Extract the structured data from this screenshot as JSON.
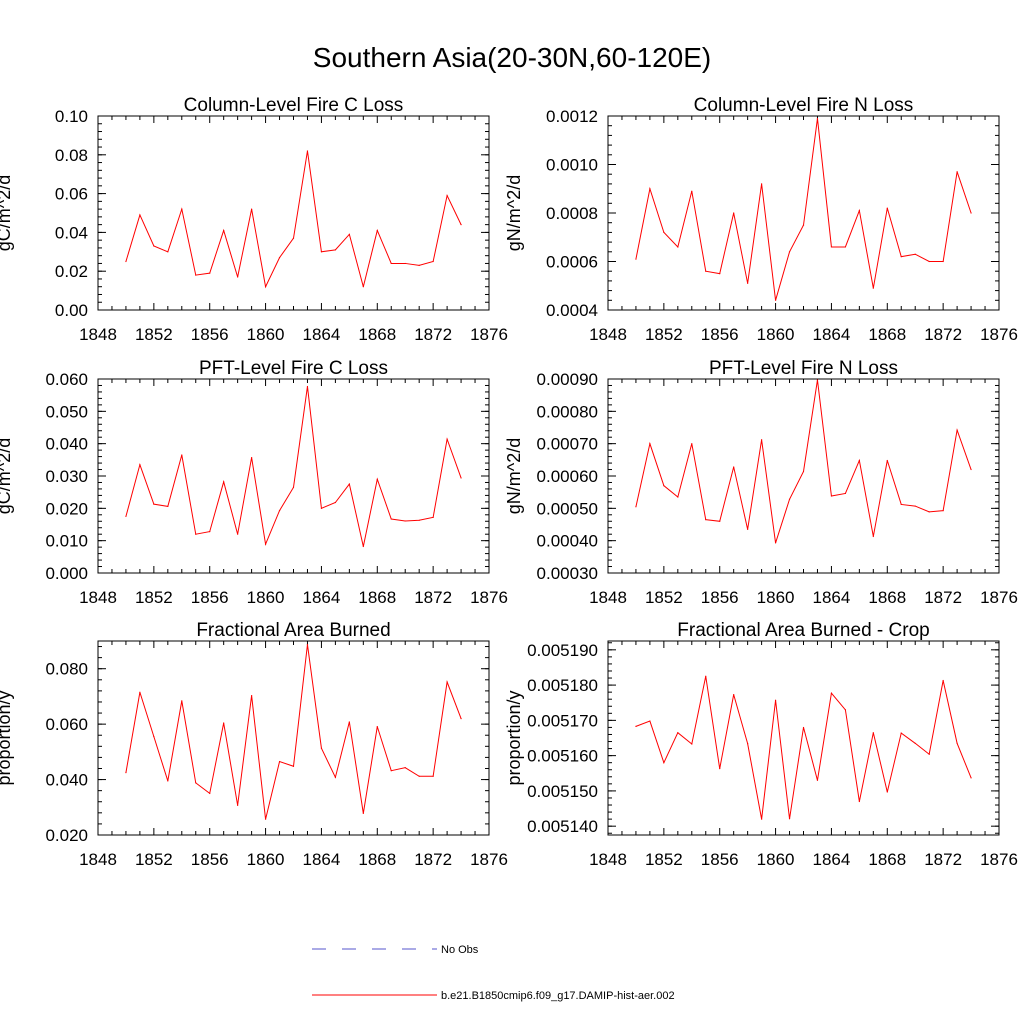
{
  "figure": {
    "title": "Southern Asia(20-30N,60-120E)"
  },
  "chart_data": [
    {
      "type": "line",
      "title": "Column-Level Fire C Loss",
      "xlabel": "",
      "ylabel": "gC/m^2/d",
      "xlim": [
        1848,
        1876
      ],
      "ylim": [
        0.0,
        0.1
      ],
      "x_ticks": [
        1848,
        1852,
        1856,
        1860,
        1864,
        1868,
        1872,
        1876
      ],
      "y_ticks": [
        0.0,
        0.02,
        0.04,
        0.06,
        0.08,
        0.1
      ],
      "y_tick_labels": [
        "0.00",
        "0.02",
        "0.04",
        "0.06",
        "0.08",
        "0.10"
      ],
      "x": [
        1850,
        1851,
        1852,
        1853,
        1854,
        1855,
        1856,
        1857,
        1858,
        1859,
        1860,
        1861,
        1862,
        1863,
        1864,
        1865,
        1866,
        1867,
        1868,
        1869,
        1870,
        1871,
        1872,
        1873,
        1874
      ],
      "series": [
        {
          "name": "b.e21.B1850cmip6.f09_g17.DAMIP-hist-aer.002",
          "color": "#ff0000",
          "values": [
            0.025,
            0.049,
            0.033,
            0.03,
            0.052,
            0.018,
            0.019,
            0.041,
            0.017,
            0.052,
            0.012,
            0.027,
            0.037,
            0.082,
            0.03,
            0.031,
            0.039,
            0.012,
            0.041,
            0.024,
            0.024,
            0.023,
            0.025,
            0.059,
            0.044
          ]
        }
      ]
    },
    {
      "type": "line",
      "title": "Column-Level Fire N Loss",
      "xlabel": "",
      "ylabel": "gN/m^2/d",
      "xlim": [
        1848,
        1876
      ],
      "ylim": [
        0.0004,
        0.0012
      ],
      "x_ticks": [
        1848,
        1852,
        1856,
        1860,
        1864,
        1868,
        1872,
        1876
      ],
      "y_ticks": [
        0.0004,
        0.0006,
        0.0008,
        0.001,
        0.0012
      ],
      "y_tick_labels": [
        "0.0004",
        "0.0006",
        "0.0008",
        "0.0010",
        "0.0012"
      ],
      "x": [
        1850,
        1851,
        1852,
        1853,
        1854,
        1855,
        1856,
        1857,
        1858,
        1859,
        1860,
        1861,
        1862,
        1863,
        1864,
        1865,
        1866,
        1867,
        1868,
        1869,
        1870,
        1871,
        1872,
        1873,
        1874
      ],
      "series": [
        {
          "name": "b.e21.B1850cmip6.f09_g17.DAMIP-hist-aer.002",
          "color": "#ff0000",
          "values": [
            0.00061,
            0.0009,
            0.00072,
            0.00066,
            0.00089,
            0.00056,
            0.00055,
            0.0008,
            0.00051,
            0.00092,
            0.00044,
            0.00064,
            0.00075,
            0.00119,
            0.00066,
            0.00066,
            0.00081,
            0.00049,
            0.00082,
            0.00062,
            0.00063,
            0.0006,
            0.0006,
            0.00097,
            0.0008
          ]
        }
      ]
    },
    {
      "type": "line",
      "title": "PFT-Level Fire C Loss",
      "xlabel": "",
      "ylabel": "gC/m^2/d",
      "xlim": [
        1848,
        1876
      ],
      "ylim": [
        0.0,
        0.06
      ],
      "x_ticks": [
        1848,
        1852,
        1856,
        1860,
        1864,
        1868,
        1872,
        1876
      ],
      "y_ticks": [
        0.0,
        0.01,
        0.02,
        0.03,
        0.04,
        0.05,
        0.06
      ],
      "y_tick_labels": [
        "0.000",
        "0.010",
        "0.020",
        "0.030",
        "0.040",
        "0.050",
        "0.060"
      ],
      "x": [
        1850,
        1851,
        1852,
        1853,
        1854,
        1855,
        1856,
        1857,
        1858,
        1859,
        1860,
        1861,
        1862,
        1863,
        1864,
        1865,
        1866,
        1867,
        1868,
        1869,
        1870,
        1871,
        1872,
        1873,
        1874
      ],
      "series": [
        {
          "name": "b.e21.B1850cmip6.f09_g17.DAMIP-hist-aer.002",
          "color": "#ff0000",
          "values": [
            0.0175,
            0.0335,
            0.0213,
            0.0206,
            0.0365,
            0.012,
            0.0128,
            0.0282,
            0.012,
            0.0357,
            0.0089,
            0.0193,
            0.0265,
            0.0577,
            0.02,
            0.0218,
            0.0275,
            0.0082,
            0.029,
            0.0167,
            0.0161,
            0.0163,
            0.0172,
            0.0414,
            0.0294
          ]
        }
      ]
    },
    {
      "type": "line",
      "title": "PFT-Level Fire N Loss",
      "xlabel": "",
      "ylabel": "gN/m^2/d",
      "xlim": [
        1848,
        1876
      ],
      "ylim": [
        0.0003,
        0.0009
      ],
      "x_ticks": [
        1848,
        1852,
        1856,
        1860,
        1864,
        1868,
        1872,
        1876
      ],
      "y_ticks": [
        0.0003,
        0.0004,
        0.0005,
        0.0006,
        0.0007,
        0.0008,
        0.0009
      ],
      "y_tick_labels": [
        "0.00030",
        "0.00040",
        "0.00050",
        "0.00060",
        "0.00070",
        "0.00080",
        "0.00090"
      ],
      "x": [
        1850,
        1851,
        1852,
        1853,
        1854,
        1855,
        1856,
        1857,
        1858,
        1859,
        1860,
        1861,
        1862,
        1863,
        1864,
        1865,
        1866,
        1867,
        1868,
        1869,
        1870,
        1871,
        1872,
        1873,
        1874
      ],
      "series": [
        {
          "name": "b.e21.B1850cmip6.f09_g17.DAMIP-hist-aer.002",
          "color": "#ff0000",
          "values": [
            0.000505,
            0.0007,
            0.00057,
            0.000535,
            0.0007,
            0.000465,
            0.00046,
            0.000628,
            0.000435,
            0.000712,
            0.000393,
            0.000528,
            0.000614,
            0.000897,
            0.000538,
            0.000546,
            0.000648,
            0.000413,
            0.000648,
            0.000512,
            0.000507,
            0.000489,
            0.000493,
            0.000742,
            0.00062
          ]
        }
      ]
    },
    {
      "type": "line",
      "title": "Fractional Area Burned",
      "xlabel": "",
      "ylabel": "proportion/y",
      "xlim": [
        1848,
        1876
      ],
      "ylim": [
        0.02,
        0.09
      ],
      "x_ticks": [
        1848,
        1852,
        1856,
        1860,
        1864,
        1868,
        1872,
        1876
      ],
      "y_ticks": [
        0.02,
        0.04,
        0.06,
        0.08
      ],
      "y_tick_labels": [
        "0.020",
        "0.040",
        "0.060",
        "0.080"
      ],
      "x": [
        1850,
        1851,
        1852,
        1853,
        1854,
        1855,
        1856,
        1857,
        1858,
        1859,
        1860,
        1861,
        1862,
        1863,
        1864,
        1865,
        1866,
        1867,
        1868,
        1869,
        1870,
        1871,
        1872,
        1873,
        1874
      ],
      "series": [
        {
          "name": "b.e21.B1850cmip6.f09_g17.DAMIP-hist-aer.002",
          "color": "#ff0000",
          "values": [
            0.0425,
            0.0715,
            0.0555,
            0.0395,
            0.0684,
            0.0388,
            0.035,
            0.0604,
            0.0307,
            0.0703,
            0.0257,
            0.0465,
            0.0448,
            0.0887,
            0.0513,
            0.0408,
            0.0608,
            0.0278,
            0.0591,
            0.0432,
            0.0443,
            0.0412,
            0.0412,
            0.0752,
            0.062
          ]
        }
      ]
    },
    {
      "type": "line",
      "title": "Fractional Area Burned - Crop",
      "xlabel": "",
      "ylabel": "proportion/y",
      "xlim": [
        1848,
        1876
      ],
      "ylim": [
        0.0051375,
        0.0051925
      ],
      "x_ticks": [
        1848,
        1852,
        1856,
        1860,
        1864,
        1868,
        1872,
        1876
      ],
      "y_ticks": [
        0.00514,
        0.00515,
        0.00516,
        0.00517,
        0.00518,
        0.00519
      ],
      "y_tick_labels": [
        "0.005140",
        "0.005150",
        "0.005160",
        "0.005170",
        "0.005180",
        "0.005190"
      ],
      "x": [
        1850,
        1851,
        1852,
        1853,
        1854,
        1855,
        1856,
        1857,
        1858,
        1859,
        1860,
        1861,
        1862,
        1863,
        1864,
        1865,
        1866,
        1867,
        1868,
        1869,
        1870,
        1871,
        1872,
        1873,
        1874
      ],
      "series": [
        {
          "name": "b.e21.B1850cmip6.f09_g17.DAMIP-hist-aer.002",
          "color": "#ff0000",
          "values": [
            0.0051683,
            0.0051698,
            0.005158,
            0.0051665,
            0.0051633,
            0.0051825,
            0.0051563,
            0.0051773,
            0.0051634,
            0.005142,
            0.0051757,
            0.0051421,
            0.005168,
            0.005153,
            0.0051777,
            0.005173,
            0.005147,
            0.0051665,
            0.0051497,
            0.0051664,
            0.0051635,
            0.0051604,
            0.0051813,
            0.0051635,
            0.0051537
          ]
        }
      ]
    }
  ],
  "legend": [
    {
      "label": "No Obs",
      "color": "#5555cc",
      "dash": "dashed"
    },
    {
      "label": "b.e21.B1850cmip6.f09_g17.DAMIP-hist-aer.002",
      "color": "#ff0000",
      "dash": "solid"
    }
  ]
}
